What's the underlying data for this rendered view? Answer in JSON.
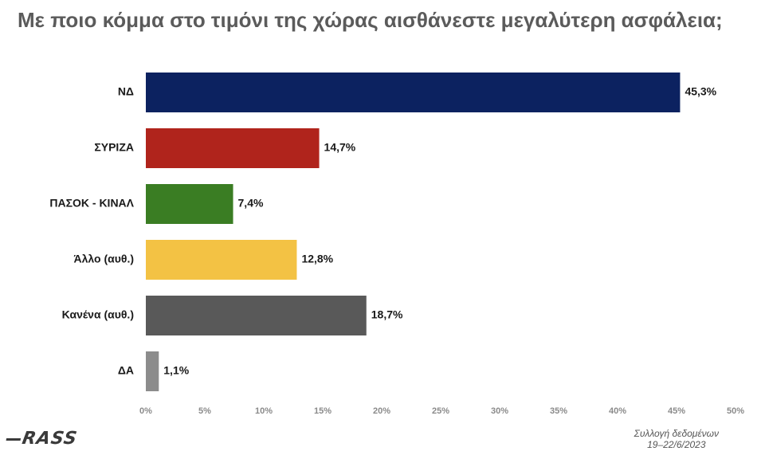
{
  "title": "Με ποιο κόμμα στο τιμόνι της χώρας αισθάνεστε μεγαλύτερη ασφάλεια;",
  "footer": {
    "line1": "Συλλογή δεδομένων",
    "line2": "19–22/6/2023"
  },
  "logo": {
    "text": "RASS"
  },
  "chart_data": {
    "type": "bar",
    "orientation": "horizontal",
    "categories": [
      "ΝΔ",
      "ΣΥΡΙΖΑ",
      "ΠΑΣΟΚ - ΚΙΝΑΛ",
      "Άλλο (αυθ.)",
      "Κανένα (αυθ.)",
      "ΔΑ"
    ],
    "values": [
      45.3,
      14.7,
      7.4,
      12.8,
      18.7,
      1.1
    ],
    "value_labels": [
      "45,3%",
      "14,7%",
      "7,4%",
      "12,8%",
      "18,7%",
      "1,1%"
    ],
    "colors": [
      "#0c2260",
      "#b0241c",
      "#3a7d23",
      "#f3c244",
      "#595959",
      "#8c8c8c"
    ],
    "xlim": [
      0,
      50
    ],
    "xticks": [
      "0%",
      "5%",
      "10%",
      "15%",
      "20%",
      "25%",
      "30%",
      "35%",
      "40%",
      "45%",
      "50%"
    ],
    "grid": false,
    "legend": "none"
  }
}
